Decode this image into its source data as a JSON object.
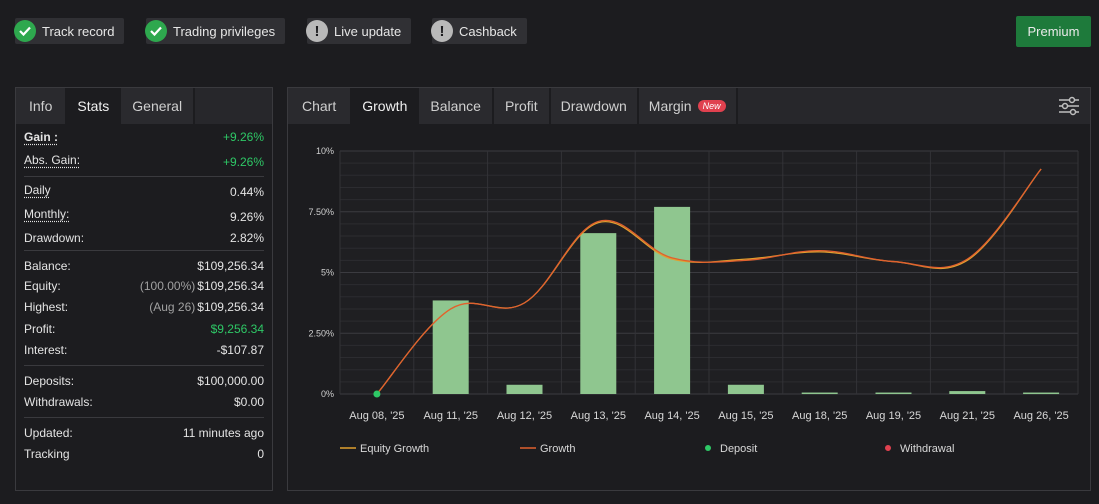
{
  "badges": [
    {
      "label": "Track record",
      "status": "ok"
    },
    {
      "label": "Trading privileges",
      "status": "ok"
    },
    {
      "label": "Live update",
      "status": "warn"
    },
    {
      "label": "Cashback",
      "status": "warn"
    }
  ],
  "premium_label": "Premium",
  "left_tabs": [
    "Info",
    "Stats",
    "General"
  ],
  "stats": {
    "gain": {
      "label": "Gain :",
      "value": "+9.26%"
    },
    "abs_gain": {
      "label": "Abs. Gain:",
      "value": "+9.26%"
    },
    "daily": {
      "label": "Daily",
      "value": "0.44%"
    },
    "monthly": {
      "label": "Monthly:",
      "value": "9.26%"
    },
    "drawdown": {
      "label": "Drawdown:",
      "value": "2.82%"
    },
    "balance": {
      "label": "Balance:",
      "value": "$109,256.34"
    },
    "equity": {
      "label": "Equity:",
      "prefix": "(100.00%)",
      "value": "$109,256.34"
    },
    "highest": {
      "label": "Highest:",
      "prefix": "(Aug 26)",
      "value": "$109,256.34"
    },
    "profit": {
      "label": "Profit:",
      "value": "$9,256.34"
    },
    "interest": {
      "label": "Interest:",
      "value": "-$107.87"
    },
    "deposits": {
      "label": "Deposits:",
      "value": "$100,000.00"
    },
    "withdrawals": {
      "label": "Withdrawals:",
      "value": "$0.00"
    },
    "updated": {
      "label": "Updated:",
      "value": "11 minutes ago"
    },
    "tracking": {
      "label": "Tracking",
      "value": "0"
    }
  },
  "right_tabs": [
    "Chart",
    "Growth",
    "Balance",
    "Profit",
    "Drawdown",
    "Margin"
  ],
  "margin_new_badge": "New",
  "colors": {
    "bar": "#8fc68f",
    "growth_line": "#e0602f",
    "equity_line": "#e0a02f",
    "deposit": "#2ec866",
    "withdrawal": "#e0414f",
    "accent_green": "#2ec866"
  },
  "chart_data": {
    "type": "bar",
    "categories": [
      "Aug 08, '25",
      "Aug 11, '25",
      "Aug 12, '25",
      "Aug 13, '25",
      "Aug 14, '25",
      "Aug 15, '25",
      "Aug 18, '25",
      "Aug 19, '25",
      "Aug 21, '25",
      "Aug 26, '25"
    ],
    "y_ticks": [
      "0%",
      "2.50%",
      "5%",
      "7.50%",
      "10%"
    ],
    "ylim": [
      0,
      10
    ],
    "grid": true,
    "series": [
      {
        "name": "Growth",
        "type": "bar",
        "values": [
          0,
          3.85,
          0.38,
          6.62,
          7.7,
          0.38,
          0.06,
          0.06,
          0.12,
          0.06
        ]
      },
      {
        "name": "Growth",
        "type": "line",
        "values": [
          0.0,
          3.5,
          3.75,
          7.1,
          5.6,
          5.5,
          5.9,
          5.45,
          5.55,
          9.26
        ]
      },
      {
        "name": "Equity Growth",
        "type": "line",
        "values": [
          0.0,
          3.5,
          3.75,
          7.05,
          5.55,
          5.55,
          5.85,
          5.45,
          5.5,
          9.26
        ]
      },
      {
        "name": "Deposit",
        "type": "point",
        "values": [
          0.0,
          null,
          null,
          null,
          null,
          null,
          null,
          null,
          null,
          null
        ]
      }
    ],
    "legend": [
      "Equity Growth",
      "Growth",
      "Deposit",
      "Withdrawal"
    ],
    "legend_position": "bottom"
  }
}
